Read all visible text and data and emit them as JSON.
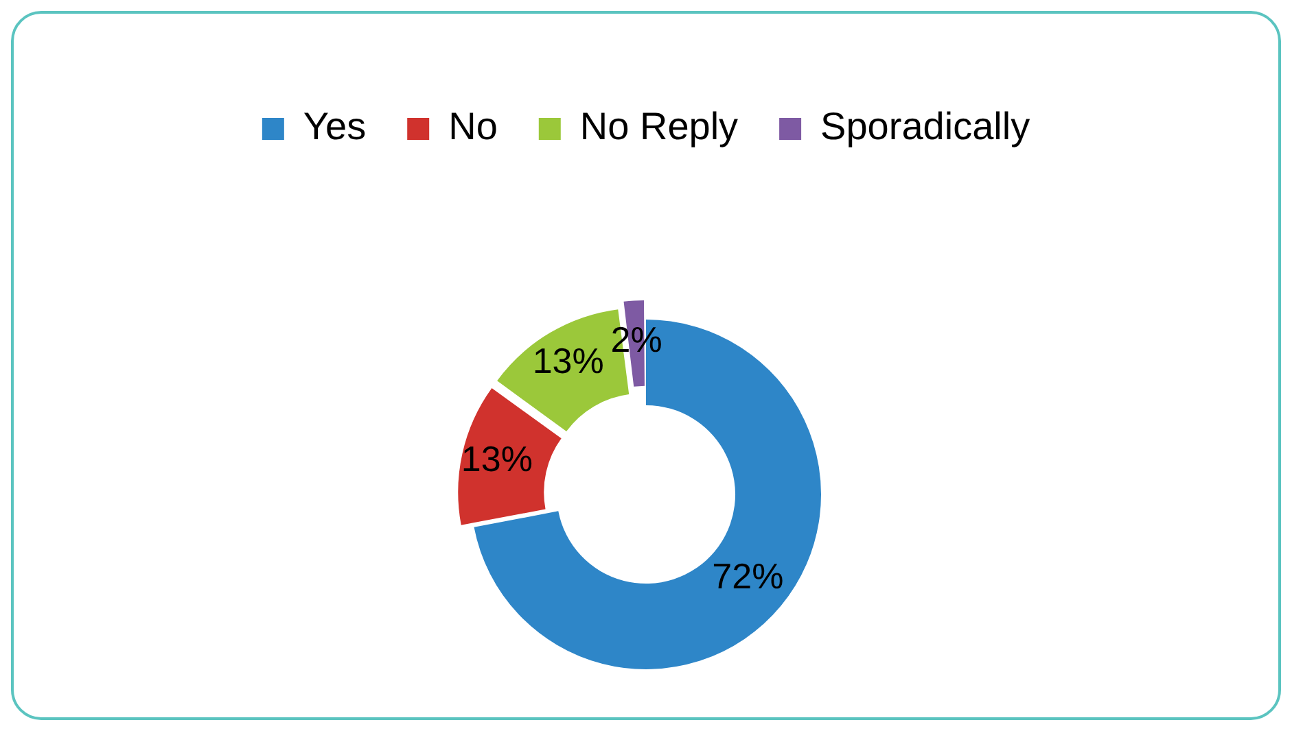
{
  "chart_data": {
    "type": "donut",
    "categories": [
      "Yes",
      "No",
      "No Reply",
      "Sporadically"
    ],
    "values": [
      72,
      13,
      13,
      2
    ],
    "colors": [
      "#2e86c8",
      "#d0322d",
      "#9bc83a",
      "#7e5aa3"
    ],
    "value_labels": [
      "72%",
      "13%",
      "13%",
      "2%"
    ],
    "legend": "top"
  }
}
